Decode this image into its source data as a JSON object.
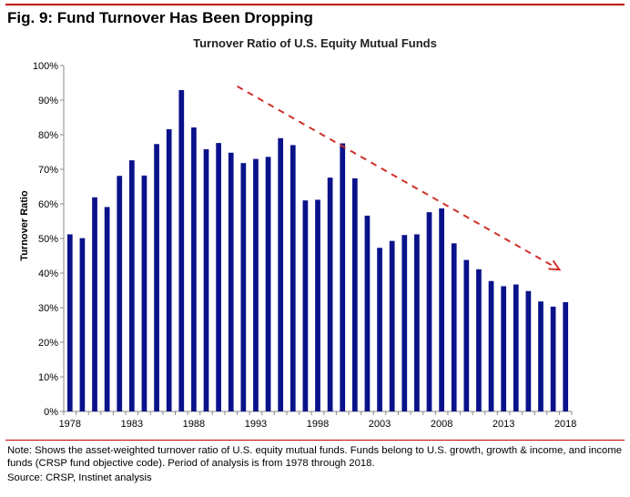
{
  "figure": {
    "title": "Fig. 9: Fund Turnover Has Been Dropping",
    "note": "Note: Shows the asset-weighted turnover ratio of U.S. equity mutual funds. Funds belong to U.S. growth, growth & income, and income funds (CRSP fund objective code). Period of analysis is from 1978 through 2018.",
    "source": "Source: CRSP, Instinet analysis"
  },
  "colors": {
    "bar": "#0a128a",
    "trend_arrow": "#d0302a",
    "rule": "#c00000"
  },
  "chart_data": {
    "type": "bar",
    "title": "Turnover Ratio of U.S. Equity Mutual Funds",
    "xlabel": "",
    "ylabel": "Turnover Ratio",
    "ylim": [
      0,
      100
    ],
    "y_ticks": [
      0,
      10,
      20,
      30,
      40,
      50,
      60,
      70,
      80,
      90,
      100
    ],
    "y_tick_labels": [
      "0%",
      "10%",
      "20%",
      "30%",
      "40%",
      "50%",
      "60%",
      "70%",
      "80%",
      "90%",
      "100%"
    ],
    "x_tick_labels": [
      "1978",
      "1983",
      "1988",
      "1993",
      "1998",
      "2003",
      "2008",
      "2013",
      "2018"
    ],
    "grid": false,
    "categories": [
      1978,
      1979,
      1980,
      1981,
      1982,
      1983,
      1984,
      1985,
      1986,
      1987,
      1988,
      1989,
      1990,
      1991,
      1992,
      1993,
      1994,
      1995,
      1996,
      1997,
      1998,
      1999,
      2000,
      2001,
      2002,
      2003,
      2004,
      2005,
      2006,
      2007,
      2008,
      2009,
      2010,
      2011,
      2012,
      2013,
      2014,
      2015,
      2016,
      2017,
      2018
    ],
    "values": [
      51.2,
      50.1,
      61.9,
      59.1,
      68.1,
      72.6,
      68.2,
      77.3,
      81.6,
      92.9,
      82.1,
      75.8,
      77.6,
      74.8,
      71.8,
      73.0,
      73.6,
      79.0,
      77.0,
      61.0,
      61.2,
      67.6,
      77.5,
      67.4,
      56.6,
      47.3,
      49.3,
      51.0,
      51.2,
      57.6,
      58.7,
      48.6,
      43.8,
      41.1,
      37.7,
      36.2,
      36.7,
      34.8,
      31.8,
      30.3,
      31.6
    ],
    "annotations": [
      {
        "type": "dashed-arrow",
        "description": "downward trend",
        "from": {
          "x": 1991.5,
          "y": 94
        },
        "to": {
          "x": 2017.5,
          "y": 41
        }
      }
    ]
  }
}
